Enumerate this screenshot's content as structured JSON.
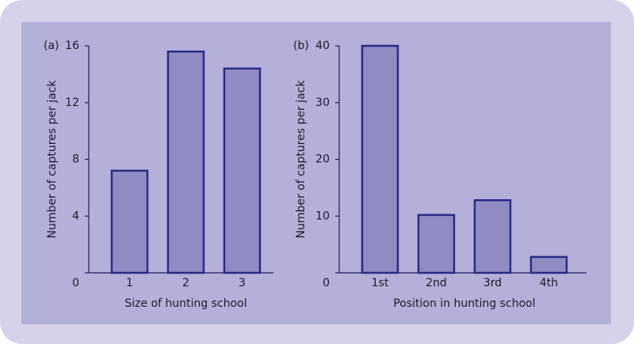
{
  "chart_data": [
    {
      "type": "bar",
      "panel_label": "(a)",
      "x_label": "Size of hunting school",
      "y_label": "Number of captures per jack",
      "categories": [
        "1",
        "2",
        "3"
      ],
      "values": [
        7.2,
        15.6,
        14.4
      ],
      "color": "#8f8cc4",
      "edge_color": "#2b2b86",
      "ylim": [
        0,
        16
      ],
      "yticks": [
        0,
        4,
        8,
        12,
        16
      ]
    },
    {
      "type": "bar",
      "panel_label": "(b)",
      "x_label": "Position in hunting school",
      "y_label": "Number of captures per jack",
      "categories": [
        "1st",
        "2nd",
        "3rd",
        "4th"
      ],
      "values": [
        40,
        10.2,
        12.8,
        2.8
      ],
      "color": "#8f8cc4",
      "edge_color": "#2b2b86",
      "ylim": [
        0,
        40
      ],
      "yticks": [
        0,
        10,
        20,
        30,
        40
      ]
    }
  ]
}
